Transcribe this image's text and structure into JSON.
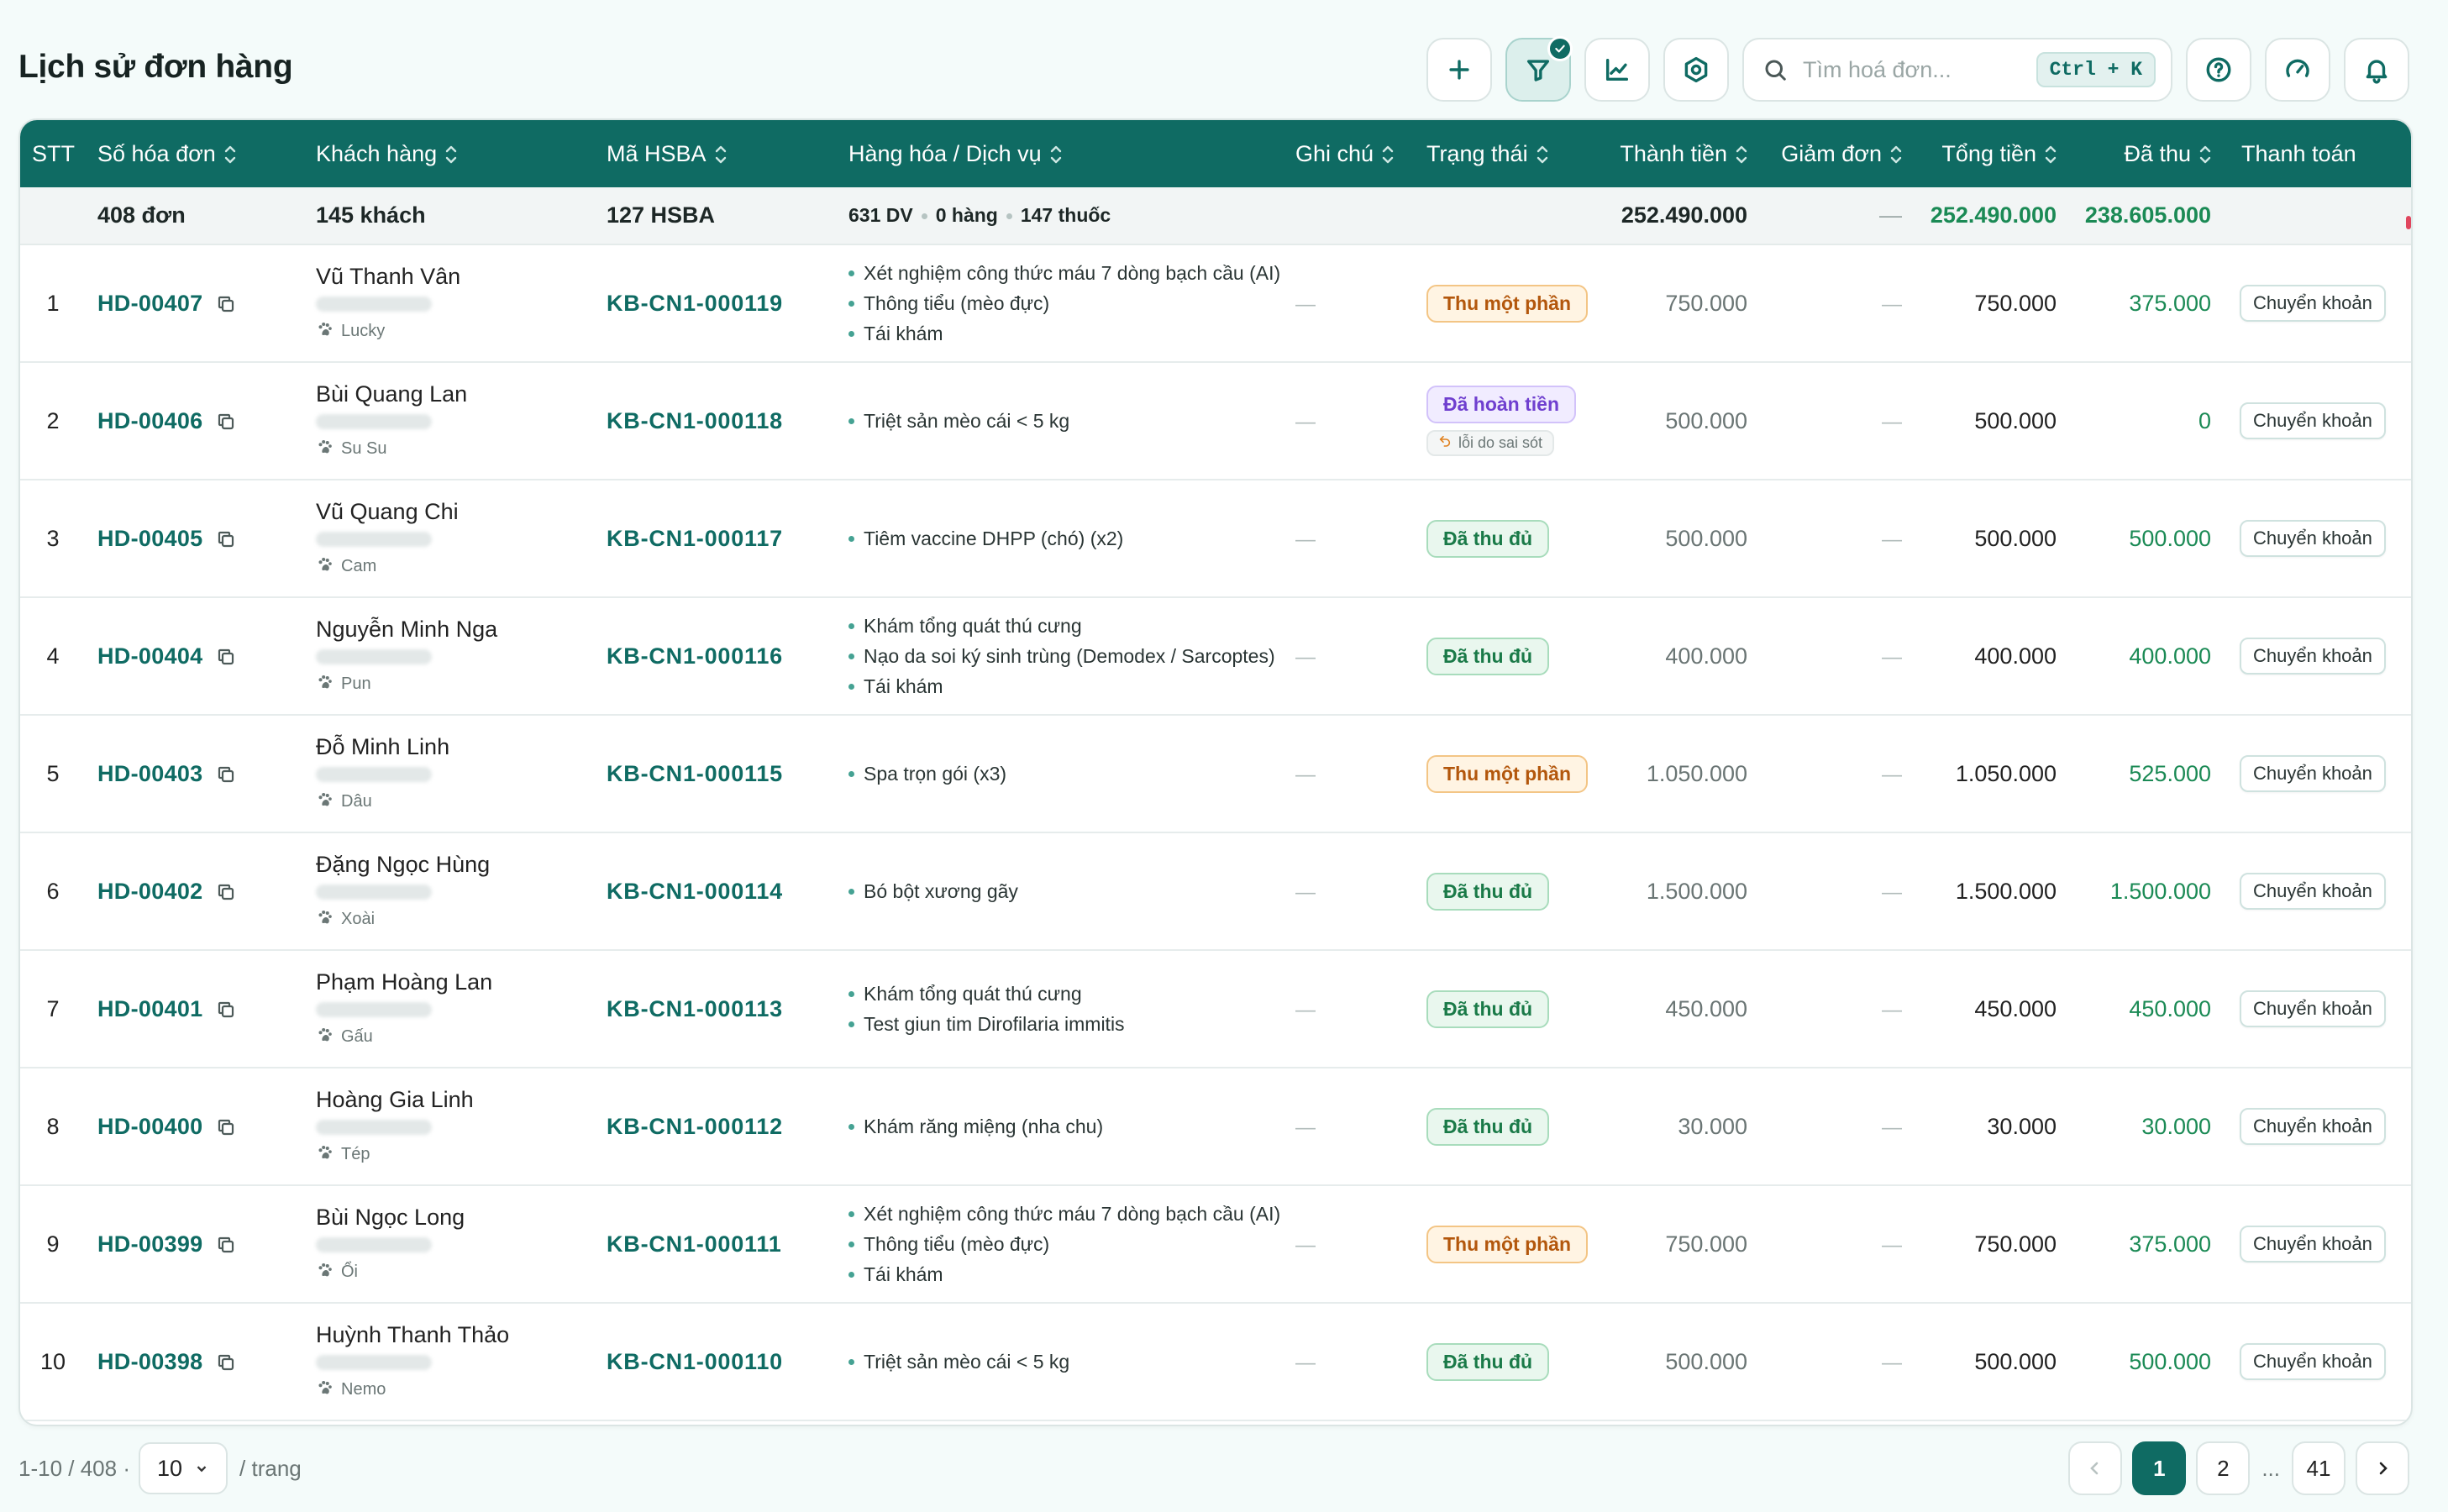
{
  "header": {
    "title": "Lịch sử đơn hàng",
    "search_placeholder": "Tìm hoá đơn...",
    "search_shortcut": "Ctrl + K"
  },
  "table": {
    "columns": [
      "STT",
      "Số hóa đơn",
      "Khách hàng",
      "Mã HSBA",
      "Hàng hóa / Dịch vụ",
      "Ghi chú",
      "Trạng thái",
      "Thành tiền",
      "Giảm đơn",
      "Tổng tiền",
      "Đã thu",
      "Thanh toán"
    ],
    "summary": {
      "invoices": "408 đơn",
      "customers": "145 khách",
      "records": "127 HSBA",
      "services": "631 DV",
      "goods": "0 hàng",
      "medicine": "147 thuốc",
      "subtotal": "252.490.000",
      "discount": "—",
      "total": "252.490.000",
      "paid": "238.605.000"
    },
    "rows": [
      {
        "stt": "1",
        "invoice": "HD-00407",
        "customer": "Vũ Thanh Vân",
        "pet": "Lucky",
        "record": "KB-CN1-000119",
        "items": [
          "Xét nghiệm công thức máu 7 dòng bạch cầu (AI)",
          "Thông tiểu (mèo đực)",
          "Tái khám"
        ],
        "note": "—",
        "status": "Thu một phần",
        "status_type": "partial",
        "status_note": "",
        "subtotal": "750.000",
        "discount": "—",
        "total": "750.000",
        "paid": "375.000",
        "payment": "Chuyển khoản"
      },
      {
        "stt": "2",
        "invoice": "HD-00406",
        "customer": "Bùi Quang Lan",
        "pet": "Su Su",
        "record": "KB-CN1-000118",
        "items": [
          "Triệt sản mèo cái < 5 kg"
        ],
        "note": "—",
        "status": "Đã hoàn tiền",
        "status_type": "refund",
        "status_note": "lỗi do sai sót",
        "subtotal": "500.000",
        "discount": "—",
        "total": "500.000",
        "paid": "0",
        "payment": "Chuyển khoản"
      },
      {
        "stt": "3",
        "invoice": "HD-00405",
        "customer": "Vũ Quang Chi",
        "pet": "Cam",
        "record": "KB-CN1-000117",
        "items": [
          "Tiêm vaccine DHPP (chó) (x2)"
        ],
        "note": "—",
        "status": "Đã thu đủ",
        "status_type": "full",
        "status_note": "",
        "subtotal": "500.000",
        "discount": "—",
        "total": "500.000",
        "paid": "500.000",
        "payment": "Chuyển khoản"
      },
      {
        "stt": "4",
        "invoice": "HD-00404",
        "customer": "Nguyễn Minh Nga",
        "pet": "Pun",
        "record": "KB-CN1-000116",
        "items": [
          "Khám tổng quát thú cưng",
          "Nạo da soi ký sinh trùng (Demodex / Sarcoptes)",
          "Tái khám"
        ],
        "note": "—",
        "status": "Đã thu đủ",
        "status_type": "full",
        "status_note": "",
        "subtotal": "400.000",
        "discount": "—",
        "total": "400.000",
        "paid": "400.000",
        "payment": "Chuyển khoản"
      },
      {
        "stt": "5",
        "invoice": "HD-00403",
        "customer": "Đỗ Minh Linh",
        "pet": "Dâu",
        "record": "KB-CN1-000115",
        "items": [
          "Spa trọn gói (x3)"
        ],
        "note": "—",
        "status": "Thu một phần",
        "status_type": "partial",
        "status_note": "",
        "subtotal": "1.050.000",
        "discount": "—",
        "total": "1.050.000",
        "paid": "525.000",
        "payment": "Chuyển khoản"
      },
      {
        "stt": "6",
        "invoice": "HD-00402",
        "customer": "Đặng Ngọc Hùng",
        "pet": "Xoài",
        "record": "KB-CN1-000114",
        "items": [
          "Bó bột xương gãy"
        ],
        "note": "—",
        "status": "Đã thu đủ",
        "status_type": "full",
        "status_note": "",
        "subtotal": "1.500.000",
        "discount": "—",
        "total": "1.500.000",
        "paid": "1.500.000",
        "payment": "Chuyển khoản"
      },
      {
        "stt": "7",
        "invoice": "HD-00401",
        "customer": "Phạm Hoàng Lan",
        "pet": "Gấu",
        "record": "KB-CN1-000113",
        "items": [
          "Khám tổng quát thú cưng",
          "Test giun tim Dirofilaria immitis"
        ],
        "note": "—",
        "status": "Đã thu đủ",
        "status_type": "full",
        "status_note": "",
        "subtotal": "450.000",
        "discount": "—",
        "total": "450.000",
        "paid": "450.000",
        "payment": "Chuyển khoản"
      },
      {
        "stt": "8",
        "invoice": "HD-00400",
        "customer": "Hoàng Gia Linh",
        "pet": "Tép",
        "record": "KB-CN1-000112",
        "items": [
          "Khám răng miệng (nha chu)"
        ],
        "note": "—",
        "status": "Đã thu đủ",
        "status_type": "full",
        "status_note": "",
        "subtotal": "30.000",
        "discount": "—",
        "total": "30.000",
        "paid": "30.000",
        "payment": "Chuyển khoản"
      },
      {
        "stt": "9",
        "invoice": "HD-00399",
        "customer": "Bùi Ngọc Long",
        "pet": "Ổi",
        "record": "KB-CN1-000111",
        "items": [
          "Xét nghiệm công thức máu 7 dòng bạch cầu (AI)",
          "Thông tiểu (mèo đực)",
          "Tái khám"
        ],
        "note": "—",
        "status": "Thu một phần",
        "status_type": "partial",
        "status_note": "",
        "subtotal": "750.000",
        "discount": "—",
        "total": "750.000",
        "paid": "375.000",
        "payment": "Chuyển khoản"
      },
      {
        "stt": "10",
        "invoice": "HD-00398",
        "customer": "Huỳnh Thanh Thảo",
        "pet": "Nemo",
        "record": "KB-CN1-000110",
        "items": [
          "Triệt sản mèo cái < 5 kg"
        ],
        "note": "—",
        "status": "Đã thu đủ",
        "status_type": "full",
        "status_note": "",
        "subtotal": "500.000",
        "discount": "—",
        "total": "500.000",
        "paid": "500.000",
        "payment": "Chuyển khoản"
      }
    ]
  },
  "footer": {
    "range": "1-10 / 408 ·",
    "page_size": "10",
    "per_page_label": "/ trang",
    "pages": [
      "1",
      "2",
      "...",
      "41"
    ],
    "current_page": "1"
  },
  "colors": {
    "primary": "#0f6b63",
    "paid_green": "#1b8a55",
    "partial": "#b3570c",
    "refund": "#6f3fcf"
  },
  "icons": {
    "toolbar": [
      "plus-icon",
      "filter-icon",
      "chart-icon",
      "settings-icon",
      "search-icon",
      "help-icon",
      "speedometer-icon",
      "bell-icon"
    ]
  }
}
